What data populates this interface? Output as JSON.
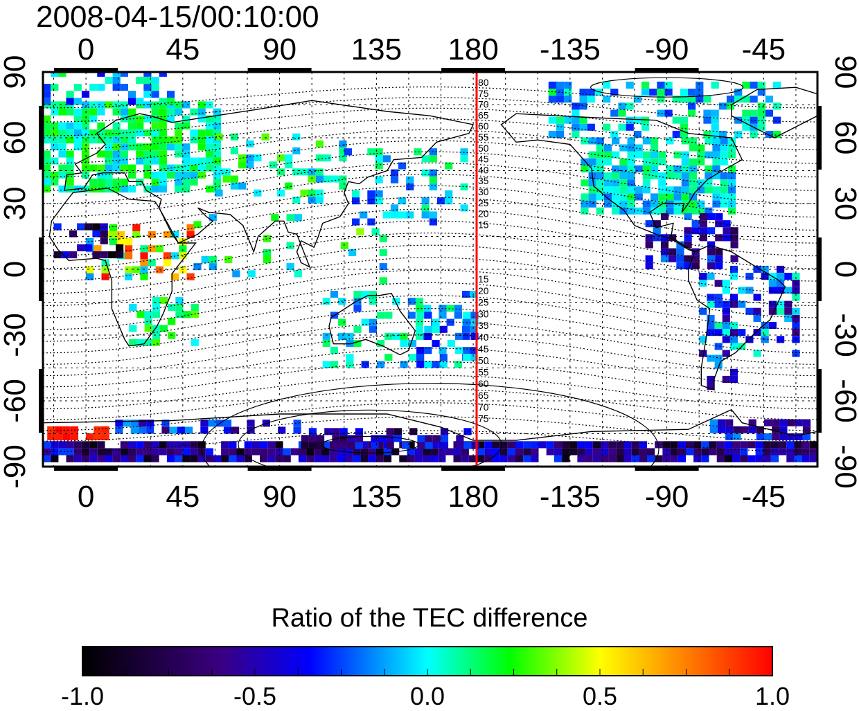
{
  "title": "2008-04-15/00:10:00",
  "colors": {
    "dip_line": "#ff0000",
    "frame": "#000000",
    "grid": "#000000"
  },
  "map": {
    "lon_ticks_top": [
      "0",
      "45",
      "90",
      "135",
      "180",
      "-135",
      "-90",
      "-45"
    ],
    "lon_ticks_bottom": [
      "0",
      "45",
      "90",
      "135",
      "180",
      "-135",
      "-90",
      "-45"
    ],
    "lat_ticks_left": [
      "90",
      "60",
      "30",
      "0",
      "-30",
      "-60",
      "-90"
    ],
    "lat_ticks_right": [
      "90",
      "60",
      "30",
      "0",
      "-30",
      "-60",
      "-90"
    ],
    "contour_labels_north": [
      "80",
      "75",
      "70",
      "65",
      "60",
      "55",
      "50",
      "45",
      "40",
      "35",
      "30",
      "25",
      "20",
      "15"
    ],
    "contour_labels_south": [
      "15",
      "20",
      "25",
      "30",
      "35",
      "40",
      "45",
      "50",
      "55",
      "60",
      "65",
      "70",
      "75"
    ],
    "lon_range": [
      -20,
      340
    ],
    "lat_range": [
      -90,
      90
    ],
    "dip_line_lon": 180
  },
  "colorbar": {
    "title": "Ratio of the TEC difference",
    "ticks": [
      "-1.0",
      "-0.5",
      "0.0",
      "0.5",
      "1.0"
    ],
    "range": [
      -1.0,
      1.0
    ],
    "stops": [
      "#000000",
      "#3a0080",
      "#0000ff",
      "#00ffff",
      "#00ff00",
      "#ffff00",
      "#ff0000"
    ]
  }
}
